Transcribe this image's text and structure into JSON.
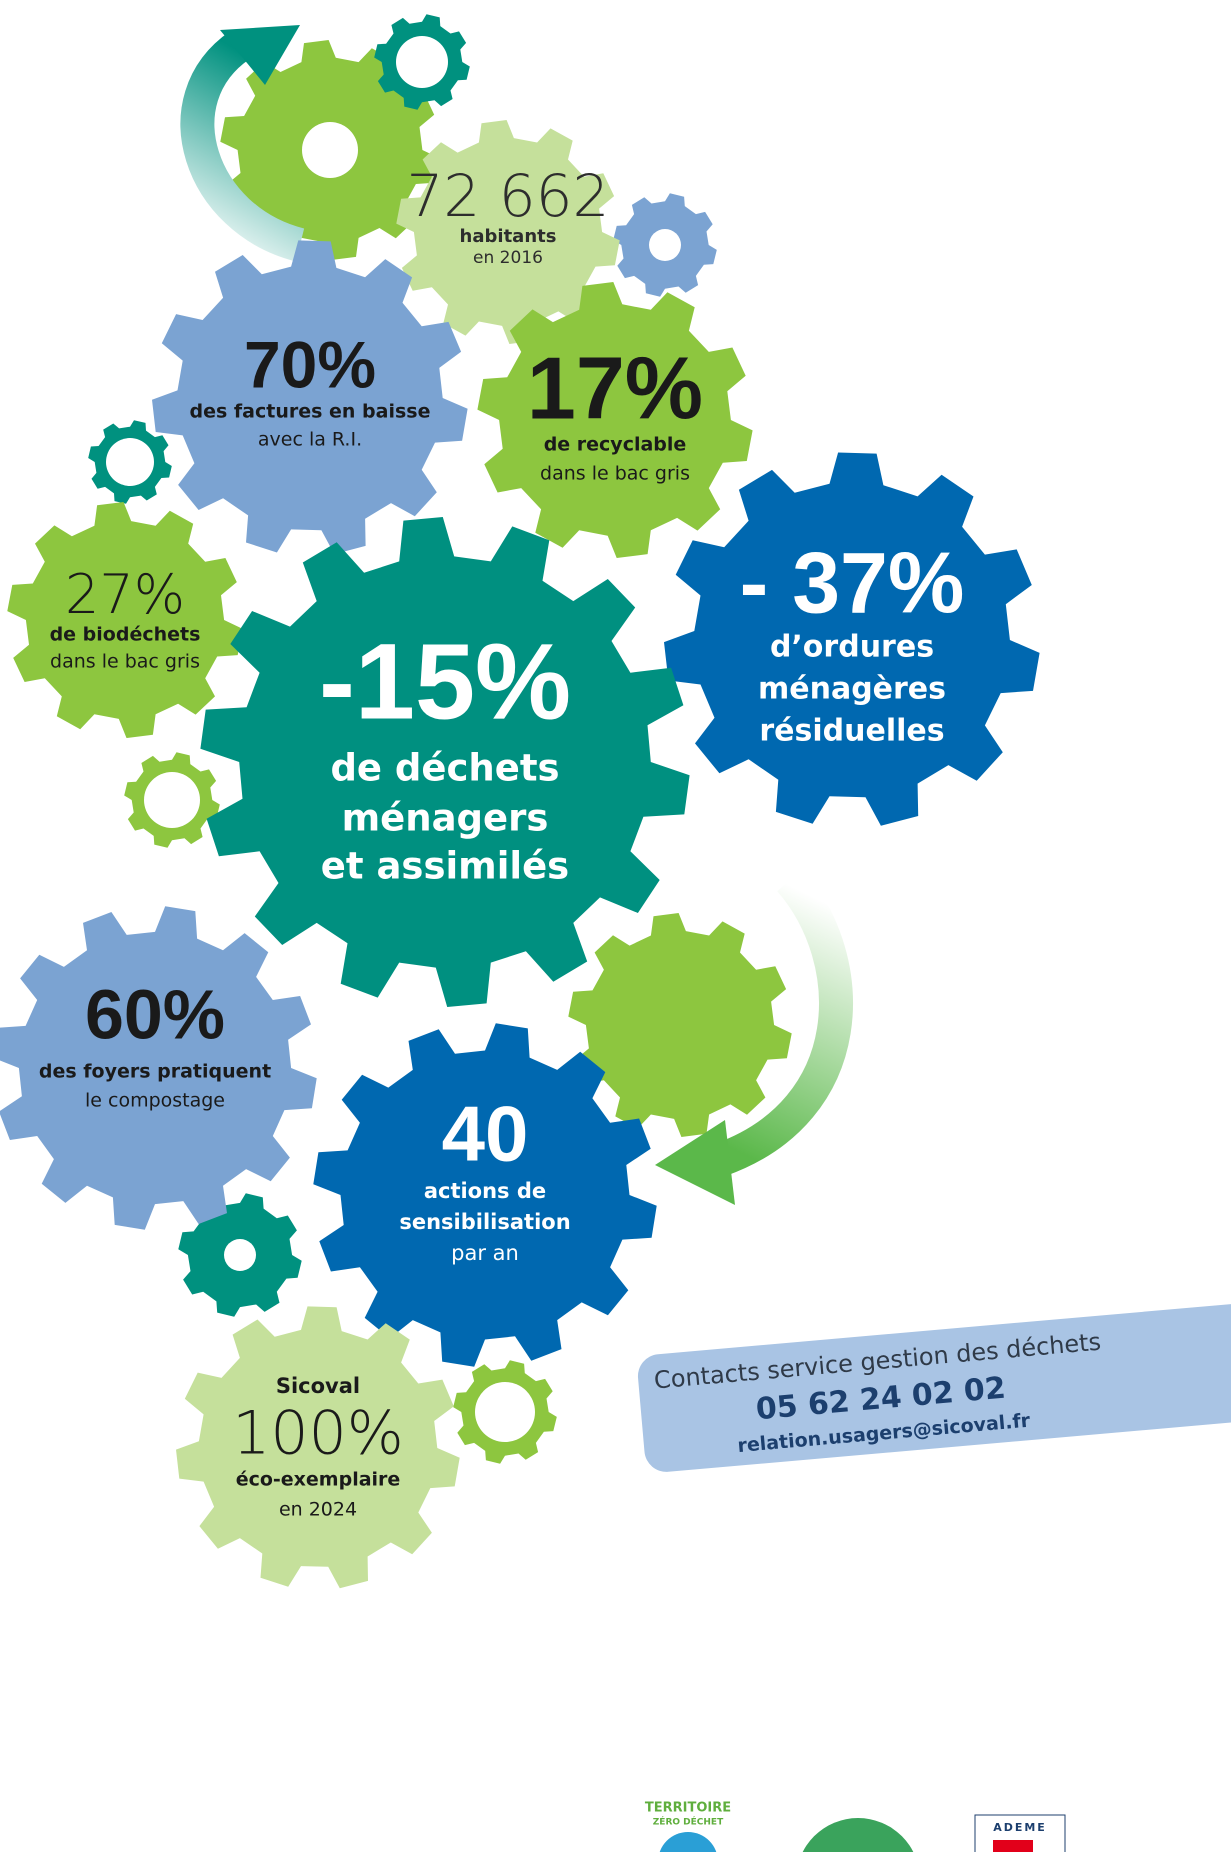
{
  "gears": [
    {
      "figure": "72 662",
      "label": [
        "habitants"
      ],
      "detail": "en 2016"
    },
    {
      "figure": "70%",
      "label": [
        "des factures en baisse"
      ],
      "detail": "avec la R.I."
    },
    {
      "figure": "17%",
      "label": [
        "de recyclable"
      ],
      "detail": "dans le bac gris"
    },
    {
      "figure": "- 37%",
      "label": [
        "d’ordures",
        "ménagères",
        "résiduelles"
      ]
    },
    {
      "figure": "27%",
      "label": [
        "de biodéchets"
      ],
      "detail": "dans le bac gris"
    },
    {
      "figure": "-15%",
      "label": [
        "de déchets",
        "ménagers",
        "et assimilés"
      ]
    },
    {
      "figure": "60%",
      "label": [
        "des foyers pratiquent"
      ],
      "detail": "le compostage"
    },
    {
      "figure": "40",
      "label": [
        "actions de",
        "sensibilisation"
      ],
      "detail": "par an"
    },
    {
      "heading": "Sicoval",
      "figure": "100%",
      "label": [
        "éco-exemplaire"
      ],
      "detail": "en 2024"
    }
  ],
  "contact": {
    "title": "Contacts service gestion des déchets",
    "phone": "05 62 24 02 02",
    "email": "relation.usagers@sicoval.fr"
  },
  "logos": {
    "territoire": [
      "TERRITOIRE",
      "ZÉRO DÉCHET"
    ],
    "ademe": "ADEME"
  }
}
